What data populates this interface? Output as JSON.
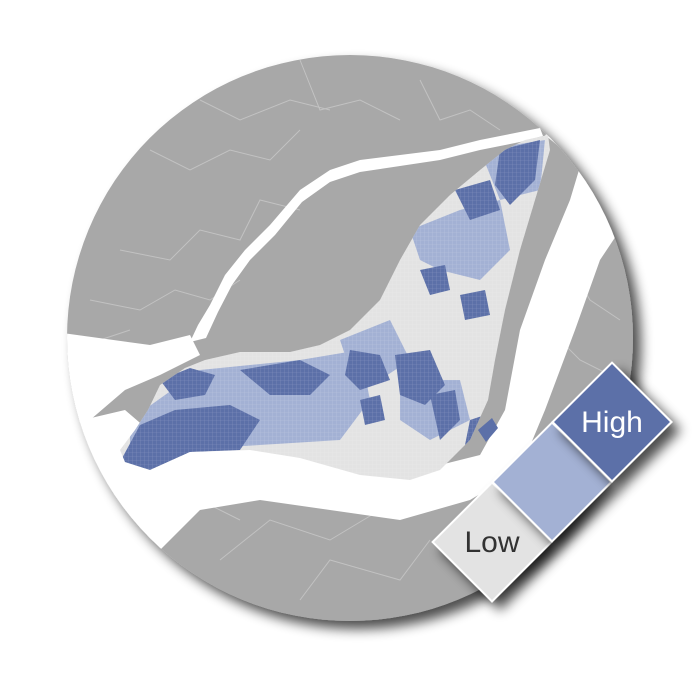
{
  "legend": {
    "items": [
      {
        "label": "Low",
        "color": "#e3e3e3",
        "text_color": "#333333"
      },
      {
        "label": "",
        "color": "#a3b1d4",
        "text_color": "#333333"
      },
      {
        "label": "High",
        "color": "#5b6fa8",
        "text_color": "#ffffff"
      }
    ]
  },
  "colors": {
    "land": "#a8a8a8",
    "boundary": "#c4c4c4",
    "water": "#ffffff",
    "island_base": "#e3e3e3",
    "medium": "#a3b1d4",
    "high": "#5b6fa8"
  }
}
